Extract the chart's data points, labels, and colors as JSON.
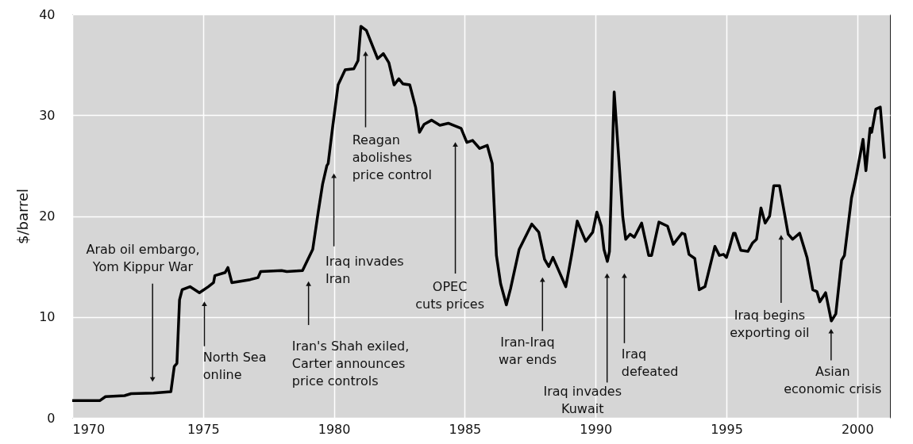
{
  "chart_data": {
    "type": "line",
    "ylabel": "$/barrel",
    "color": "#000000",
    "x": [
      1970,
      1971.05,
      1971.27,
      1972.0,
      1972.25,
      1973.1,
      1973.77,
      1973.9,
      1974.0,
      1974.1,
      1974.2,
      1974.5,
      1974.86,
      1975.2,
      1975.4,
      1975.45,
      1975.84,
      1975.95,
      1976.1,
      1976.8,
      1977.1,
      1977.2,
      1978.0,
      1978.2,
      1978.8,
      1979.19,
      1979.4,
      1979.57,
      1979.73,
      1979.78,
      1979.95,
      1980.16,
      1980.43,
      1980.76,
      1980.92,
      1981.03,
      1981.24,
      1981.67,
      1981.89,
      1982.1,
      1982.3,
      1982.48,
      1982.64,
      1982.9,
      1983.12,
      1983.27,
      1983.45,
      1983.73,
      1984.05,
      1984.37,
      1984.86,
      1985.08,
      1985.3,
      1985.57,
      1985.86,
      1986.05,
      1986.21,
      1986.37,
      1986.59,
      1986.75,
      1987.08,
      1987.56,
      1987.83,
      1988.05,
      1988.21,
      1988.37,
      1988.86,
      1989.08,
      1989.3,
      1989.62,
      1989.89,
      1990.05,
      1990.22,
      1990.32,
      1990.45,
      1990.53,
      1990.71,
      1991.04,
      1991.15,
      1991.32,
      1991.48,
      1991.76,
      1992.03,
      1992.14,
      1992.42,
      1992.75,
      1992.97,
      1993.3,
      1993.41,
      1993.57,
      1993.79,
      1993.96,
      1994.18,
      1994.56,
      1994.73,
      1994.89,
      1995.0,
      1995.11,
      1995.27,
      1995.33,
      1995.55,
      1995.82,
      1995.99,
      1996.15,
      1996.32,
      1996.48,
      1996.65,
      1996.81,
      1997.03,
      1997.36,
      1997.53,
      1997.8,
      1998.08,
      1998.3,
      1998.46,
      1998.57,
      1998.79,
      1999.01,
      1999.18,
      1999.4,
      1999.51,
      1999.78,
      1999.95,
      2000.22,
      2000.33,
      2000.49,
      2000.55,
      2000.71,
      2000.88,
      2001.04
    ],
    "values": [
      1.7,
      1.7,
      2.1,
      2.2,
      2.4,
      2.45,
      2.6,
      5.1,
      5.4,
      11.7,
      12.7,
      13.0,
      12.4,
      13.0,
      13.4,
      14.1,
      14.4,
      14.9,
      13.4,
      13.7,
      13.9,
      14.5,
      14.6,
      14.5,
      14.6,
      16.7,
      20.4,
      23.2,
      25.0,
      25.2,
      28.8,
      33.0,
      34.5,
      34.6,
      35.4,
      38.8,
      38.4,
      35.6,
      36.1,
      35.2,
      33.0,
      33.6,
      33.1,
      33.0,
      30.8,
      28.3,
      29.1,
      29.5,
      29.0,
      29.2,
      28.7,
      27.3,
      27.5,
      26.7,
      27.0,
      25.2,
      16.1,
      13.3,
      11.2,
      12.8,
      16.7,
      19.2,
      18.4,
      15.7,
      15.0,
      15.9,
      13.0,
      16.1,
      19.5,
      17.5,
      18.4,
      20.4,
      19.0,
      16.7,
      15.5,
      16.5,
      32.3,
      19.9,
      17.7,
      18.2,
      17.9,
      19.3,
      16.1,
      16.1,
      19.4,
      19.0,
      17.2,
      18.3,
      18.2,
      16.2,
      15.8,
      12.7,
      13.0,
      17.0,
      16.1,
      16.2,
      15.9,
      16.8,
      18.3,
      18.3,
      16.6,
      16.5,
      17.3,
      17.7,
      20.8,
      19.3,
      20.0,
      23.0,
      23.0,
      18.2,
      17.7,
      18.3,
      15.9,
      12.7,
      12.5,
      11.5,
      12.4,
      9.6,
      10.3,
      15.6,
      16.1,
      21.8,
      23.8,
      27.6,
      24.5,
      28.7,
      28.3,
      30.6,
      30.8,
      25.8
    ],
    "xlim": [
      1970,
      2001.25
    ],
    "xticks": [
      1970,
      1975,
      1980,
      1985,
      1990,
      1995,
      2000
    ],
    "ylim": [
      0,
      40
    ],
    "yticks": [
      0,
      10,
      20,
      30,
      40
    ],
    "grid": true,
    "annotations": [
      {
        "text": "Arab oil embargo,\nYom Kippur War",
        "x": 1973.07,
        "y": 3.8
      },
      {
        "text": "North Sea\nonline",
        "x": 1975.05,
        "y": 11.3
      },
      {
        "text": "Iran's Shah exiled,\nCarter announces\nprice controls",
        "x": 1979.03,
        "y": 13.3
      },
      {
        "text": "Iraq invades\nIran",
        "x": 1980.0,
        "y": 24.0
      },
      {
        "text": "Reagan\nabolishes\nprice control",
        "x": 1981.21,
        "y": 36.1
      },
      {
        "text": "OPEC\ncuts prices",
        "x": 1984.64,
        "y": 27.1
      },
      {
        "text": "Iran-Iraq\nwar ends",
        "x": 1987.97,
        "y": 13.7
      },
      {
        "text": "Iraq invades\nKuwait",
        "x": 1990.44,
        "y": 14.1
      },
      {
        "text": "Iraq\ndefeated",
        "x": 1991.1,
        "y": 14.1
      },
      {
        "text": "Iraq begins\nexporting oil",
        "x": 1997.09,
        "y": 17.9
      },
      {
        "text": "Asian\neconomic crisis",
        "x": 1999.0,
        "y": 8.6
      }
    ]
  }
}
